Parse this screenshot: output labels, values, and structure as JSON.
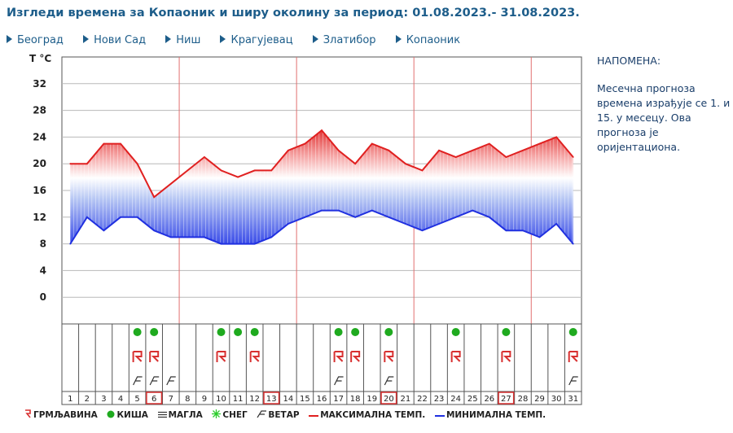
{
  "header": {
    "title": "Изгледи времена за Копаоник и ширу околину за период: 01.08.2023.- 31.08.2023."
  },
  "nav": {
    "items": [
      {
        "label": "Београд"
      },
      {
        "label": "Нови Сад"
      },
      {
        "label": "Ниш"
      },
      {
        "label": "Крагујевац"
      },
      {
        "label": "Златибор"
      },
      {
        "label": "Копаоник"
      }
    ]
  },
  "note": {
    "heading": "НАПОМЕНА:",
    "text": "Месечна прогноза времена израђује се 1. и 15. у месецу. Ова прогноза је оријентациона."
  },
  "legend": {
    "thunder": "ГРМЉАВИНА",
    "rain": "КИША",
    "fog": "МАГЛА",
    "snow": "СНЕГ",
    "wind": "ВЕТАР",
    "max": "МАКСИМАЛНА ТЕМП.",
    "min": "МИНИМАЛНА ТЕМП."
  },
  "colors": {
    "max_line": "#e02020",
    "min_line": "#2030e0",
    "rain": "#1faa1f",
    "frame_red": "#d83030",
    "grid": "#b8b8b8"
  },
  "chart_data": {
    "type": "line",
    "ylabel": "Т °C",
    "yticks": [
      0,
      4,
      8,
      12,
      16,
      20,
      24,
      28,
      32
    ],
    "ylim": [
      -4,
      36
    ],
    "days": [
      1,
      2,
      3,
      4,
      5,
      6,
      7,
      8,
      9,
      10,
      11,
      12,
      13,
      14,
      15,
      16,
      17,
      18,
      19,
      20,
      21,
      22,
      23,
      24,
      25,
      26,
      27,
      28,
      29,
      30,
      31
    ],
    "series": [
      {
        "name": "МАКСИМАЛНА ТЕМП.",
        "values": [
          20,
          20,
          23,
          23,
          20,
          15,
          17,
          19,
          21,
          19,
          18,
          19,
          19,
          22,
          23,
          25,
          22,
          20,
          23,
          22,
          20,
          19,
          22,
          21,
          22,
          23,
          21,
          22,
          23,
          24,
          21
        ]
      },
      {
        "name": "МИНИМАЛНА ТЕМП.",
        "values": [
          8,
          12,
          10,
          12,
          12,
          10,
          9,
          9,
          9,
          8,
          8,
          8,
          9,
          11,
          12,
          13,
          13,
          12,
          13,
          12,
          11,
          10,
          11,
          12,
          13,
          12,
          10,
          10,
          9,
          11,
          8
        ]
      }
    ],
    "rain_days": [
      5,
      6,
      10,
      11,
      12,
      17,
      18,
      20,
      24,
      27,
      31
    ],
    "thunder_days": [
      5,
      6,
      10,
      12,
      17,
      18,
      20,
      24,
      27,
      31
    ],
    "wind_days": [
      5,
      6,
      7,
      17,
      20,
      31
    ],
    "highlighted_days": [
      6,
      13,
      20,
      27
    ]
  }
}
